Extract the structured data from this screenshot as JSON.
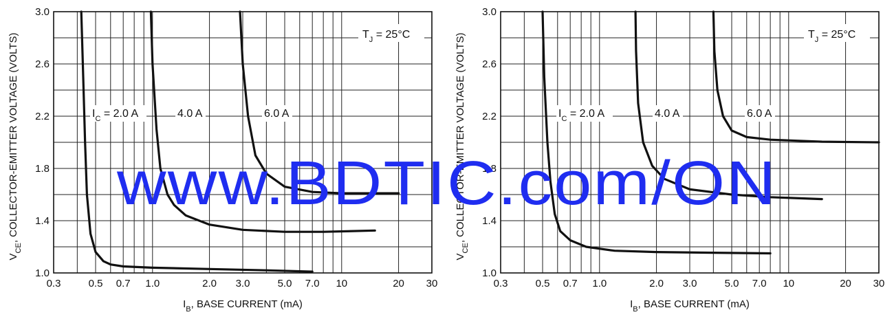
{
  "watermark": "www.BDTIC.com/ON",
  "colors": {
    "watermark": "#1f2df0",
    "ink": "#111111",
    "background": "#ffffff"
  },
  "chart_data": [
    {
      "type": "line",
      "title": "",
      "xlabel": {
        "main": "I",
        "sub": "B",
        "rest": ", BASE CURRENT (mA)"
      },
      "ylabel": {
        "main": "V",
        "sub": "CE",
        "rest": ", COLLECTOR-EMITTER VOLTAGE (VOLTS)"
      },
      "xscale": "log",
      "xlim": [
        0.3,
        30
      ],
      "ylim": [
        1.0,
        3.0
      ],
      "xticks": [
        0.3,
        0.5,
        0.7,
        1.0,
        2.0,
        3.0,
        5.0,
        7.0,
        10,
        20,
        30
      ],
      "xticklabels": [
        "0.3",
        "0.5",
        "0.7",
        "1.0",
        "2.0",
        "3.0",
        "5.0",
        "7.0",
        "10",
        "20",
        "30"
      ],
      "yticks": [
        1.0,
        1.4,
        1.8,
        2.2,
        2.6,
        3.0
      ],
      "yticklabels": [
        "1.0",
        "1.4",
        "1.8",
        "2.2",
        "2.6",
        "3.0"
      ],
      "grid": true,
      "annotation": {
        "main": "T",
        "sub": "J",
        "rest": " = 25°C"
      },
      "series": [
        {
          "name": "I_C = 2.0 A",
          "label_main": "I",
          "label_sub": "C",
          "label_rest": " = 2.0 A",
          "points": [
            [
              0.42,
              3.0
            ],
            [
              0.43,
              2.5
            ],
            [
              0.44,
              2.0
            ],
            [
              0.45,
              1.6
            ],
            [
              0.47,
              1.3
            ],
            [
              0.5,
              1.16
            ],
            [
              0.55,
              1.09
            ],
            [
              0.6,
              1.065
            ],
            [
              0.7,
              1.05
            ],
            [
              1.0,
              1.04
            ],
            [
              2.0,
              1.03
            ],
            [
              4.0,
              1.02
            ],
            [
              7.0,
              1.01
            ]
          ]
        },
        {
          "name": "4.0 A",
          "label_main": "4.0 A",
          "label_sub": "",
          "label_rest": "",
          "points": [
            [
              0.98,
              3.0
            ],
            [
              1.0,
              2.6
            ],
            [
              1.05,
              2.1
            ],
            [
              1.1,
              1.8
            ],
            [
              1.2,
              1.6
            ],
            [
              1.3,
              1.52
            ],
            [
              1.5,
              1.44
            ],
            [
              2.0,
              1.37
            ],
            [
              3.0,
              1.33
            ],
            [
              5.0,
              1.315
            ],
            [
              8.0,
              1.315
            ],
            [
              15.0,
              1.325
            ]
          ]
        },
        {
          "name": "6.0 A",
          "label_main": "6.0 A",
          "label_sub": "",
          "label_rest": "",
          "points": [
            [
              2.9,
              3.0
            ],
            [
              3.0,
              2.6
            ],
            [
              3.2,
              2.2
            ],
            [
              3.5,
              1.9
            ],
            [
              4.0,
              1.76
            ],
            [
              5.0,
              1.66
            ],
            [
              7.0,
              1.62
            ],
            [
              10.0,
              1.61
            ],
            [
              20.0,
              1.61
            ]
          ]
        }
      ]
    },
    {
      "type": "line",
      "title": "",
      "xlabel": {
        "main": "I",
        "sub": "B",
        "rest": ", BASE CURRENT (mA)"
      },
      "ylabel": {
        "main": "V",
        "sub": "CE",
        "rest": ", COLLECTOR-EMITTER VOLTAGE (VOLTS)"
      },
      "xscale": "log",
      "xlim": [
        0.3,
        30
      ],
      "ylim": [
        1.0,
        3.0
      ],
      "xticks": [
        0.3,
        0.5,
        0.7,
        1.0,
        2.0,
        3.0,
        5.0,
        7.0,
        10,
        20,
        30
      ],
      "xticklabels": [
        "0.3",
        "0.5",
        "0.7",
        "1.0",
        "2.0",
        "3.0",
        "5.0",
        "7.0",
        "10",
        "20",
        "30"
      ],
      "yticks": [
        1.0,
        1.4,
        1.8,
        2.2,
        2.6,
        3.0
      ],
      "yticklabels": [
        "1.0",
        "1.4",
        "1.8",
        "2.2",
        "2.6",
        "3.0"
      ],
      "grid": true,
      "annotation": {
        "main": "T",
        "sub": "J",
        "rest": " = 25°C"
      },
      "series": [
        {
          "name": "I_C = 2.0 A",
          "label_main": "I",
          "label_sub": "C",
          "label_rest": " = 2.0 A",
          "points": [
            [
              0.5,
              3.0
            ],
            [
              0.51,
              2.5
            ],
            [
              0.53,
              2.0
            ],
            [
              0.55,
              1.7
            ],
            [
              0.58,
              1.45
            ],
            [
              0.62,
              1.32
            ],
            [
              0.7,
              1.25
            ],
            [
              0.85,
              1.2
            ],
            [
              1.2,
              1.17
            ],
            [
              2.0,
              1.16
            ],
            [
              4.0,
              1.155
            ],
            [
              8.0,
              1.15
            ]
          ]
        },
        {
          "name": "4.0 A",
          "label_main": "4.0 A",
          "label_sub": "",
          "label_rest": "",
          "points": [
            [
              1.55,
              3.0
            ],
            [
              1.56,
              2.7
            ],
            [
              1.6,
              2.3
            ],
            [
              1.7,
              2.0
            ],
            [
              1.9,
              1.82
            ],
            [
              2.2,
              1.72
            ],
            [
              3.0,
              1.64
            ],
            [
              5.0,
              1.6
            ],
            [
              8.0,
              1.58
            ],
            [
              15.0,
              1.565
            ]
          ]
        },
        {
          "name": "6.0 A",
          "label_main": "6.0 A",
          "label_sub": "",
          "label_rest": "",
          "points": [
            [
              4.0,
              3.0
            ],
            [
              4.05,
              2.7
            ],
            [
              4.2,
              2.4
            ],
            [
              4.5,
              2.2
            ],
            [
              5.0,
              2.09
            ],
            [
              6.0,
              2.04
            ],
            [
              8.0,
              2.02
            ],
            [
              15.0,
              2.005
            ],
            [
              30.0,
              2.0
            ]
          ]
        }
      ]
    }
  ]
}
